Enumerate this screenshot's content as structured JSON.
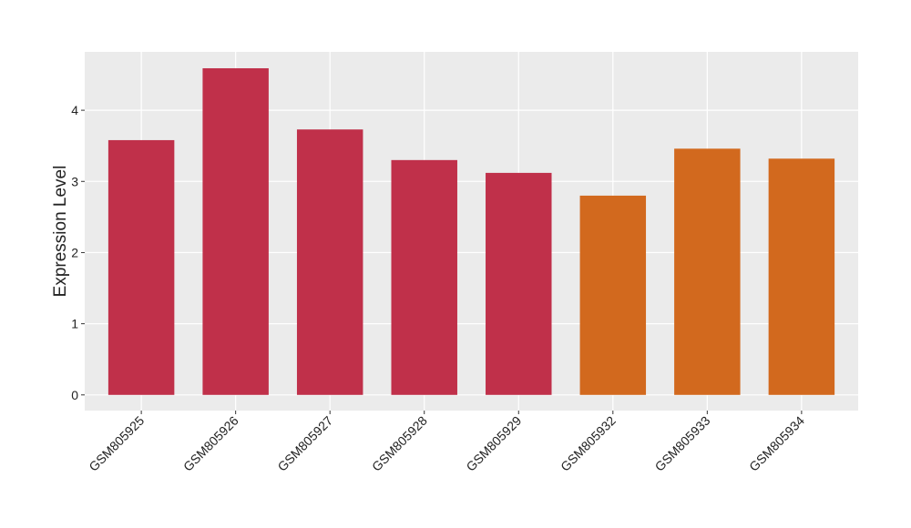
{
  "chart_data": {
    "type": "bar",
    "y_label": "Expression Level",
    "categories": [
      "GSM805925",
      "GSM805926",
      "GSM805927",
      "GSM805928",
      "GSM805929",
      "GSM805932",
      "GSM805933",
      "GSM805934"
    ],
    "values": [
      3.58,
      4.59,
      3.73,
      3.3,
      3.12,
      2.8,
      3.46,
      3.32
    ],
    "colors": [
      "#c0304a",
      "#c0304a",
      "#c0304a",
      "#c0304a",
      "#c0304a",
      "#d2691e",
      "#d2691e",
      "#d2691e"
    ],
    "ylim": [
      -0.22,
      4.82
    ],
    "yticks": [
      0,
      1,
      2,
      3,
      4
    ],
    "grid": true
  }
}
